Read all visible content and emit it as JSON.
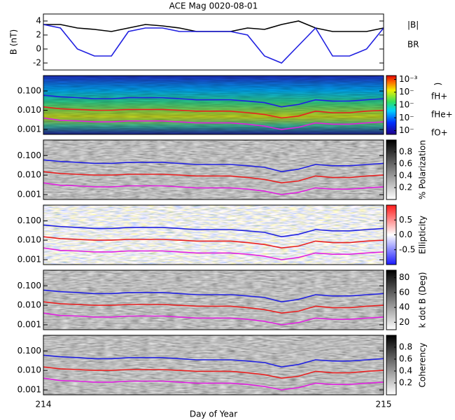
{
  "chart_data": [
    {
      "type": "line",
      "title": "ACE Mag 0020-08-01",
      "ylabel": "B (nT)",
      "x": [
        214,
        214.05,
        214.1,
        214.15,
        214.2,
        214.25,
        214.3,
        214.35,
        214.4,
        214.45,
        214.5,
        214.55,
        214.6,
        214.65,
        214.7,
        214.75,
        214.8,
        214.85,
        214.9,
        214.95,
        215
      ],
      "xlim": [
        214,
        215
      ],
      "ylim": [
        -3,
        5
      ],
      "yticks": [
        -2,
        0,
        2,
        4
      ],
      "series": [
        {
          "name": "|B|",
          "color": "#000000",
          "values": [
            3.5,
            3.5,
            3,
            2.8,
            2.5,
            3,
            3.5,
            3.3,
            3,
            2.5,
            2.5,
            2.5,
            3,
            2.8,
            3.5,
            4,
            3,
            2.5,
            2.5,
            2.5,
            3
          ]
        },
        {
          "name": "BR",
          "color": "#2020e0",
          "values": [
            3.5,
            3,
            0,
            -1,
            -1,
            2.5,
            3,
            3,
            2.5,
            2.5,
            2.5,
            2.5,
            2,
            -1,
            -2,
            0.5,
            3,
            -1,
            -1,
            0,
            3
          ]
        }
      ]
    },
    {
      "type": "spectrogram",
      "log_y": true,
      "colormap": "rainbow",
      "show_series_names": true,
      "x": [
        214,
        214.05,
        214.1,
        214.15,
        214.2,
        214.25,
        214.3,
        214.35,
        214.4,
        214.45,
        214.5,
        214.55,
        214.6,
        214.65,
        214.7,
        214.75,
        214.8,
        214.85,
        214.9,
        214.95,
        215
      ],
      "xlim": [
        214,
        215
      ],
      "ylim": [
        0.00056,
        0.63
      ],
      "yticks": [
        {
          "value": 0.001,
          "label": "0.001"
        },
        {
          "value": 0.01,
          "label": "0.010"
        },
        {
          "value": 0.1,
          "label": "0.100"
        }
      ],
      "colorbar": {
        "label": ")",
        "lim": [
          -7.3,
          -2.7
        ],
        "ticks": [
          {
            "value": -3,
            "label": "10⁻³"
          },
          {
            "value": -4,
            "label": "10⁻"
          },
          {
            "value": -5,
            "label": "10⁻"
          },
          {
            "value": -6,
            "label": "10⁻"
          },
          {
            "value": -7,
            "label": "10⁻"
          }
        ]
      },
      "series": [
        {
          "name": "fH+",
          "color": "#2020e0",
          "values": [
            0.06,
            0.05,
            0.045,
            0.04,
            0.04,
            0.045,
            0.045,
            0.045,
            0.04,
            0.035,
            0.035,
            0.035,
            0.03,
            0.025,
            0.015,
            0.02,
            0.035,
            0.03,
            0.03,
            0.035,
            0.04
          ]
        },
        {
          "name": "fHe+",
          "color": "#e82020",
          "values": [
            0.015,
            0.012,
            0.011,
            0.01,
            0.01,
            0.011,
            0.011,
            0.011,
            0.01,
            0.009,
            0.009,
            0.009,
            0.0075,
            0.006,
            0.004,
            0.005,
            0.009,
            0.0075,
            0.0075,
            0.009,
            0.01
          ]
        },
        {
          "name": "fO+",
          "color": "#e020e0",
          "values": [
            0.004,
            0.003,
            0.0028,
            0.0025,
            0.0025,
            0.0028,
            0.0028,
            0.0028,
            0.0025,
            0.0022,
            0.0022,
            0.0022,
            0.0019,
            0.0015,
            0.001,
            0.0013,
            0.0022,
            0.0019,
            0.0019,
            0.0022,
            0.0025
          ]
        }
      ]
    },
    {
      "type": "spectrogram",
      "log_y": true,
      "colormap": "gray",
      "x": [
        214,
        214.05,
        214.1,
        214.15,
        214.2,
        214.25,
        214.3,
        214.35,
        214.4,
        214.45,
        214.5,
        214.55,
        214.6,
        214.65,
        214.7,
        214.75,
        214.8,
        214.85,
        214.9,
        214.95,
        215
      ],
      "xlim": [
        214,
        215
      ],
      "ylim": [
        0.00056,
        0.63
      ],
      "yticks": [
        {
          "value": 0.001,
          "label": "0.001"
        },
        {
          "value": 0.01,
          "label": "0.010"
        },
        {
          "value": 0.1,
          "label": "0.100"
        }
      ],
      "colorbar": {
        "label": "% Polarization",
        "lim": [
          0,
          1
        ],
        "ticks": [
          0.2,
          0.4,
          0.6,
          0.8
        ]
      },
      "series": [
        {
          "name": "fH+",
          "color": "#2020e0",
          "values": [
            0.06,
            0.05,
            0.045,
            0.04,
            0.04,
            0.045,
            0.045,
            0.045,
            0.04,
            0.035,
            0.035,
            0.035,
            0.03,
            0.025,
            0.015,
            0.02,
            0.035,
            0.03,
            0.03,
            0.035,
            0.04
          ]
        },
        {
          "name": "fHe+",
          "color": "#e82020",
          "values": [
            0.015,
            0.012,
            0.011,
            0.01,
            0.01,
            0.011,
            0.011,
            0.011,
            0.01,
            0.009,
            0.009,
            0.009,
            0.0075,
            0.006,
            0.004,
            0.005,
            0.009,
            0.0075,
            0.0075,
            0.009,
            0.01
          ]
        },
        {
          "name": "fO+",
          "color": "#e020e0",
          "values": [
            0.004,
            0.003,
            0.0028,
            0.0025,
            0.0025,
            0.0028,
            0.0028,
            0.0028,
            0.0025,
            0.0022,
            0.0022,
            0.0022,
            0.0019,
            0.0015,
            0.001,
            0.0013,
            0.0022,
            0.0019,
            0.0019,
            0.0022,
            0.0025
          ]
        }
      ]
    },
    {
      "type": "spectrogram",
      "log_y": true,
      "colormap": "bwr",
      "x": [
        214,
        214.05,
        214.1,
        214.15,
        214.2,
        214.25,
        214.3,
        214.35,
        214.4,
        214.45,
        214.5,
        214.55,
        214.6,
        214.65,
        214.7,
        214.75,
        214.8,
        214.85,
        214.9,
        214.95,
        215
      ],
      "xlim": [
        214,
        215
      ],
      "ylim": [
        0.00056,
        0.63
      ],
      "yticks": [
        {
          "value": 0.001,
          "label": "0.001"
        },
        {
          "value": 0.01,
          "label": "0.010"
        },
        {
          "value": 0.1,
          "label": "0.100"
        }
      ],
      "colorbar": {
        "label": "Ellipticity",
        "lim": [
          -1,
          1
        ],
        "ticks": [
          -0.5,
          {
            "value": 0,
            "label": "0.0"
          },
          0.5
        ]
      },
      "series": [
        {
          "name": "fH+",
          "color": "#2020e0",
          "values": [
            0.06,
            0.05,
            0.045,
            0.04,
            0.04,
            0.045,
            0.045,
            0.045,
            0.04,
            0.035,
            0.035,
            0.035,
            0.03,
            0.025,
            0.015,
            0.02,
            0.035,
            0.03,
            0.03,
            0.035,
            0.04
          ]
        },
        {
          "name": "fHe+",
          "color": "#e82020",
          "values": [
            0.015,
            0.012,
            0.011,
            0.01,
            0.01,
            0.011,
            0.011,
            0.011,
            0.01,
            0.009,
            0.009,
            0.009,
            0.0075,
            0.006,
            0.004,
            0.005,
            0.009,
            0.0075,
            0.0075,
            0.009,
            0.01
          ]
        },
        {
          "name": "fO+",
          "color": "#e020e0",
          "values": [
            0.004,
            0.003,
            0.0028,
            0.0025,
            0.0025,
            0.0028,
            0.0028,
            0.0028,
            0.0025,
            0.0022,
            0.0022,
            0.0022,
            0.0019,
            0.0015,
            0.001,
            0.0013,
            0.0022,
            0.0019,
            0.0019,
            0.0022,
            0.0025
          ]
        }
      ]
    },
    {
      "type": "spectrogram",
      "log_y": true,
      "colormap": "gray",
      "x": [
        214,
        214.05,
        214.1,
        214.15,
        214.2,
        214.25,
        214.3,
        214.35,
        214.4,
        214.45,
        214.5,
        214.55,
        214.6,
        214.65,
        214.7,
        214.75,
        214.8,
        214.85,
        214.9,
        214.95,
        215
      ],
      "xlim": [
        214,
        215
      ],
      "ylim": [
        0.00056,
        0.63
      ],
      "yticks": [
        {
          "value": 0.001,
          "label": "0.001"
        },
        {
          "value": 0.01,
          "label": "0.010"
        },
        {
          "value": 0.1,
          "label": "0.100"
        }
      ],
      "colorbar": {
        "label": "k dot B (Deg)",
        "lim": [
          10,
          90
        ],
        "ticks": [
          20,
          40,
          60,
          80
        ]
      },
      "series": [
        {
          "name": "fH+",
          "color": "#2020e0",
          "values": [
            0.06,
            0.05,
            0.045,
            0.04,
            0.04,
            0.045,
            0.045,
            0.045,
            0.04,
            0.035,
            0.035,
            0.035,
            0.03,
            0.025,
            0.015,
            0.02,
            0.035,
            0.03,
            0.03,
            0.035,
            0.04
          ]
        },
        {
          "name": "fHe+",
          "color": "#e82020",
          "values": [
            0.015,
            0.012,
            0.011,
            0.01,
            0.01,
            0.011,
            0.011,
            0.011,
            0.01,
            0.009,
            0.009,
            0.009,
            0.0075,
            0.006,
            0.004,
            0.005,
            0.009,
            0.0075,
            0.0075,
            0.009,
            0.01
          ]
        },
        {
          "name": "fO+",
          "color": "#e020e0",
          "values": [
            0.004,
            0.003,
            0.0028,
            0.0025,
            0.0025,
            0.0028,
            0.0028,
            0.0028,
            0.0025,
            0.0022,
            0.0022,
            0.0022,
            0.0019,
            0.0015,
            0.001,
            0.0013,
            0.0022,
            0.0019,
            0.0019,
            0.0022,
            0.0025
          ]
        }
      ]
    },
    {
      "type": "spectrogram",
      "log_y": true,
      "colormap": "gray_r",
      "xlabel": "Day of Year",
      "xticks": [
        214,
        215
      ],
      "x": [
        214,
        214.05,
        214.1,
        214.15,
        214.2,
        214.25,
        214.3,
        214.35,
        214.4,
        214.45,
        214.5,
        214.55,
        214.6,
        214.65,
        214.7,
        214.75,
        214.8,
        214.85,
        214.9,
        214.95,
        215
      ],
      "xlim": [
        214,
        215
      ],
      "ylim": [
        0.00056,
        0.63
      ],
      "yticks": [
        {
          "value": 0.001,
          "label": "0.001"
        },
        {
          "value": 0.01,
          "label": "0.010"
        },
        {
          "value": 0.1,
          "label": "0.100"
        }
      ],
      "colorbar": {
        "label": "Coherency",
        "lim": [
          0,
          1
        ],
        "ticks": [
          0.2,
          0.4,
          0.6,
          0.8
        ]
      },
      "series": [
        {
          "name": "fH+",
          "color": "#2020e0",
          "values": [
            0.06,
            0.05,
            0.045,
            0.04,
            0.04,
            0.045,
            0.045,
            0.045,
            0.04,
            0.035,
            0.035,
            0.035,
            0.03,
            0.025,
            0.015,
            0.02,
            0.035,
            0.03,
            0.03,
            0.035,
            0.04
          ]
        },
        {
          "name": "fHe+",
          "color": "#e82020",
          "values": [
            0.015,
            0.012,
            0.011,
            0.01,
            0.01,
            0.011,
            0.011,
            0.011,
            0.01,
            0.009,
            0.009,
            0.009,
            0.0075,
            0.006,
            0.004,
            0.005,
            0.009,
            0.0075,
            0.0075,
            0.009,
            0.01
          ]
        },
        {
          "name": "fO+",
          "color": "#e020e0",
          "values": [
            0.004,
            0.003,
            0.0028,
            0.0025,
            0.0025,
            0.0028,
            0.0028,
            0.0028,
            0.0025,
            0.0022,
            0.0022,
            0.0022,
            0.0019,
            0.0015,
            0.001,
            0.0013,
            0.0022,
            0.0019,
            0.0019,
            0.0022,
            0.0025
          ]
        }
      ]
    }
  ]
}
